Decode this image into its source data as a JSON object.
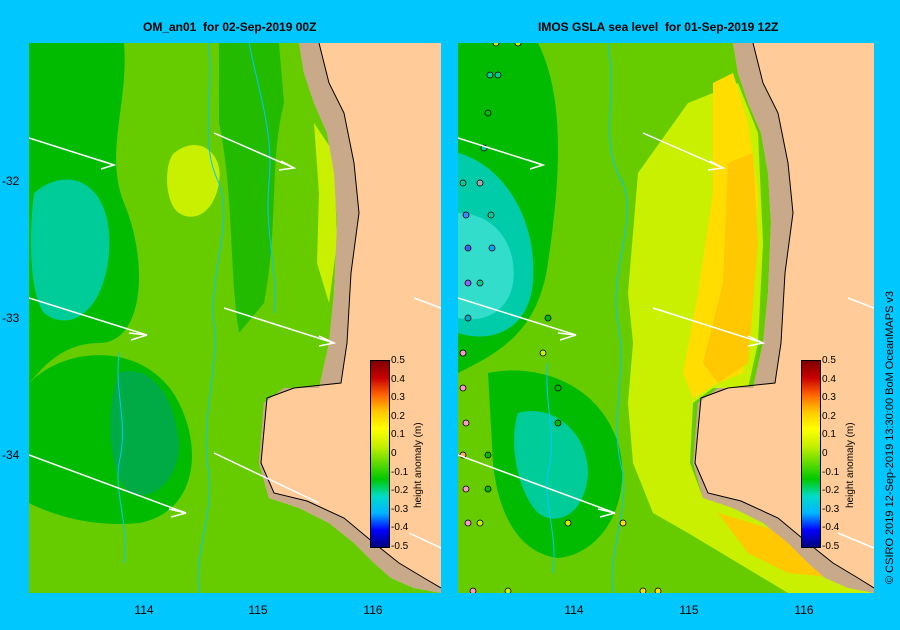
{
  "left_panel": {
    "title": "OM_an01  for 02-Sep-2019 00Z"
  },
  "right_panel": {
    "title": "IMOS GSLA sea level  for 01-Sep-2019 12Z"
  },
  "y_ticks": [
    "-32",
    "-33",
    "-34"
  ],
  "x_ticks": [
    "114",
    "115",
    "116"
  ],
  "colorbar": {
    "title": "height anomaly (m)",
    "labels": [
      "0.5",
      "0.4",
      "0.3",
      "0.2",
      "0.1",
      "0",
      "-0.1",
      "-0.2",
      "-0.3",
      "-0.4",
      "-0.5"
    ],
    "colors": [
      "#00007f",
      "#0000ff",
      "#00b4ff",
      "#00dcc8",
      "#00c800",
      "#64dc00",
      "#c8f000",
      "#ffff00",
      "#ffc800",
      "#ff6400",
      "#c80000",
      "#7f0000"
    ]
  },
  "credit": "© CSIRO 2019   12-Sep-2019 13:30:00 BoM OceanMAPS v3",
  "colors": {
    "land": "#ffcc99",
    "shelf": "#c8aa8a",
    "background": "#00c8ff"
  }
}
